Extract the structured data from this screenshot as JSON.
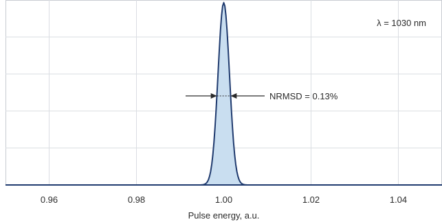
{
  "chart_data": {
    "type": "area",
    "title": "",
    "xlabel": "Pulse energy, a.u.",
    "ylabel": "",
    "xlim": [
      0.95,
      1.05
    ],
    "ylim": [
      0,
      1
    ],
    "x_ticks": [
      0.96,
      0.98,
      1.0,
      1.02,
      1.04
    ],
    "x_tick_labels": [
      "0.96",
      "0.98",
      "1.00",
      "1.02",
      "1.04"
    ],
    "y_gridlines": [
      0.2,
      0.4,
      0.6,
      0.8
    ],
    "grid": true,
    "series": [
      {
        "distribution": "gaussian",
        "mean": 1.0,
        "fwhm": 0.0031,
        "peak": 1.0,
        "line_color": "#1f3a6e",
        "fill_color": "#c9def0"
      }
    ],
    "annotations": [
      {
        "text": "λ = 1030 nm"
      },
      {
        "text": "NRMSD = 0.13%"
      }
    ]
  },
  "colors": {
    "grid": "#dadde2",
    "frame": "#c8ccd2",
    "baseline": "#1f3a6e",
    "arrow": "#2a2a2a"
  }
}
